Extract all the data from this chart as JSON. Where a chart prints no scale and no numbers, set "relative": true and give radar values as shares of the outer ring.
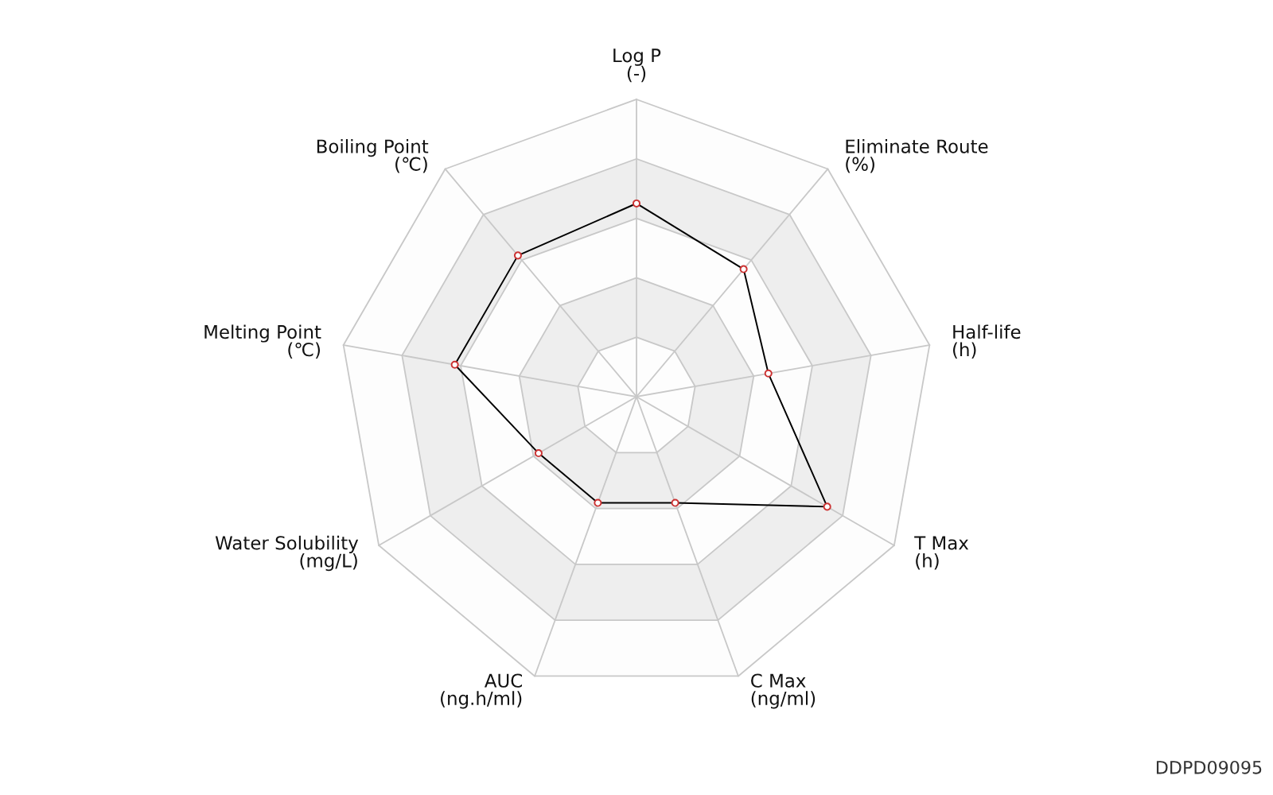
{
  "chart_data": {
    "type": "radar",
    "relative": true,
    "grid": true,
    "marker": "circle",
    "line_style": "solid",
    "categories": [
      "Log P\n(-)",
      "Eliminate Route\n(%)",
      "Half-life\n(h)",
      "T Max\n(h)",
      "C Max\n(ng/ml)",
      "AUC\n(ng.h/ml)",
      "Water Solubility\n(mg/L)",
      "Melting Point\n(℃)",
      "Boiling Point\n(℃)"
    ],
    "series": [
      {
        "color": "#000000",
        "colors": [
          "#cc3333",
          "#cc3333",
          "#cc3333",
          "#cc3333",
          "#cc3333",
          "#cc3333",
          "#cc3333",
          "#cc3333",
          "#cc3333"
        ],
        "values": [
          0.65,
          0.56,
          0.45,
          0.74,
          0.38,
          0.38,
          0.38,
          0.62,
          0.62
        ]
      }
    ],
    "annotations": [
      "DDPD09095"
    ]
  }
}
